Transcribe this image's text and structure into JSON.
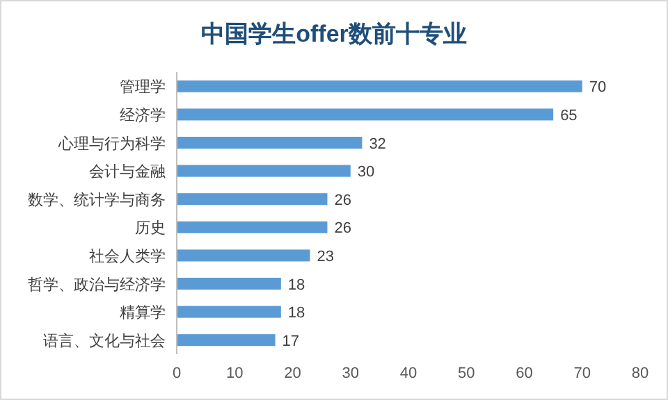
{
  "chart_data": {
    "type": "bar",
    "orientation": "horizontal",
    "title": "中国学生offer数前十专业",
    "categories": [
      "管理学",
      "经济学",
      "心理与行为科学",
      "会计与金融",
      "数学、统计学与商务",
      "历史",
      "社会人类学",
      "哲学、政治与经济学",
      "精算学",
      "语言、文化与社会"
    ],
    "values": [
      70,
      65,
      32,
      30,
      26,
      26,
      23,
      18,
      18,
      17
    ],
    "color": "#5b9bd5",
    "xlim": [
      0,
      80
    ],
    "xticks": [
      0,
      10,
      20,
      30,
      40,
      50,
      60,
      70,
      80
    ],
    "data_labels": true
  }
}
